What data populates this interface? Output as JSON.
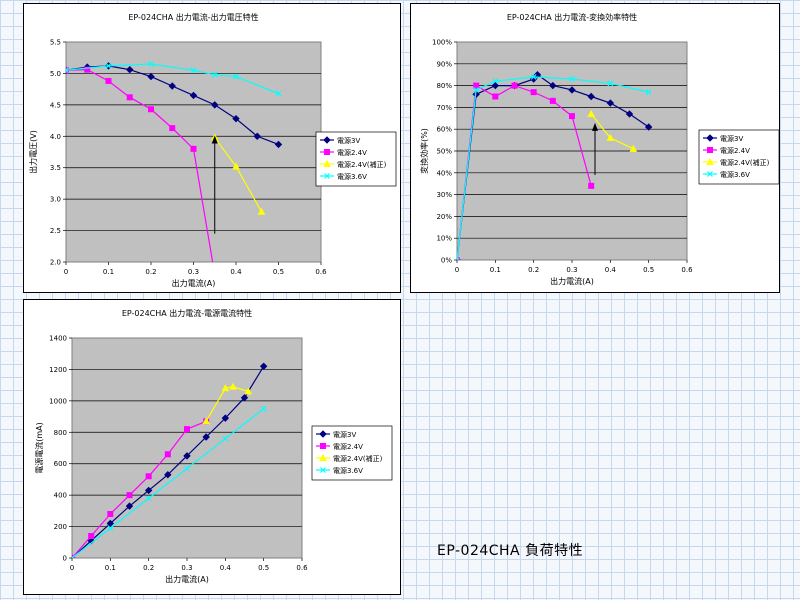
{
  "page": {
    "caption": "EP-024CHA 負荷特性",
    "background_color": "#f4f8fd",
    "grid_color": "#c6d8ef"
  },
  "chart_data": [
    {
      "type": "line",
      "title": "EP-024CHA 出力電流-出力電圧特性",
      "xlabel": "出力電流(A)",
      "ylabel": "出力電圧(V)",
      "xlim": [
        0,
        0.6
      ],
      "ylim": [
        2.0,
        5.5
      ],
      "x_ticks": [
        "0",
        "0.1",
        "0.2",
        "0.3",
        "0.4",
        "0.5",
        "0.6"
      ],
      "y_ticks": [
        "2.0",
        "2.5",
        "3.0",
        "3.5",
        "4.0",
        "4.5",
        "5.0",
        "5.5"
      ],
      "plot_bg": "#c0c0c0",
      "grid": "horizontal",
      "legend_position": "right",
      "series": [
        {
          "name": "電源3V",
          "color": "#000080",
          "marker": "diamond",
          "x": [
            0,
            0.05,
            0.1,
            0.15,
            0.2,
            0.25,
            0.3,
            0.35,
            0.4,
            0.45,
            0.5
          ],
          "y": [
            5.05,
            5.1,
            5.12,
            5.06,
            4.95,
            4.8,
            4.65,
            4.5,
            4.28,
            4.0,
            3.87
          ]
        },
        {
          "name": "電源2.4V",
          "color": "#ff00ff",
          "marker": "square",
          "x": [
            0,
            0.05,
            0.1,
            0.15,
            0.2,
            0.25,
            0.3,
            0.35
          ],
          "y": [
            5.05,
            5.06,
            4.88,
            4.62,
            4.43,
            4.13,
            3.8,
            1.8
          ]
        },
        {
          "name": "電源2.4V(補正)",
          "color": "#ffff00",
          "marker": "triangle",
          "x": [
            0.35,
            0.4,
            0.46
          ],
          "y": [
            3.98,
            3.52,
            2.8
          ]
        },
        {
          "name": "電源3.6V",
          "color": "#00ffff",
          "marker": "x",
          "x": [
            0,
            0.1,
            0.2,
            0.3,
            0.35,
            0.4,
            0.5
          ],
          "y": [
            5.05,
            5.12,
            5.15,
            5.05,
            4.98,
            4.95,
            4.68
          ]
        }
      ],
      "annotations": [
        {
          "type": "arrow",
          "x": 0.35,
          "y_from": 2.45,
          "y_to": 3.98
        }
      ]
    },
    {
      "type": "line",
      "title": "EP-024CHA 出力電流-変換効率特性",
      "xlabel": "出力電流(A)",
      "ylabel": "変換効率(%)",
      "xlim": [
        0,
        0.6
      ],
      "ylim": [
        0,
        100
      ],
      "x_ticks": [
        "0",
        "0.1",
        "0.2",
        "0.3",
        "0.4",
        "0.5",
        "0.6"
      ],
      "y_ticks": [
        "0%",
        "10%",
        "20%",
        "30%",
        "40%",
        "50%",
        "60%",
        "70%",
        "80%",
        "90%",
        "100%"
      ],
      "plot_bg": "#c0c0c0",
      "grid": "horizontal",
      "legend_position": "right",
      "series": [
        {
          "name": "電源3V",
          "color": "#000080",
          "marker": "diamond",
          "x": [
            0,
            0.05,
            0.1,
            0.15,
            0.2,
            0.21,
            0.25,
            0.3,
            0.35,
            0.4,
            0.45,
            0.5
          ],
          "y": [
            0,
            76,
            80,
            80,
            83,
            85,
            80,
            78,
            75,
            72,
            67,
            61
          ]
        },
        {
          "name": "電源2.4V",
          "color": "#ff00ff",
          "marker": "square",
          "x": [
            0,
            0.05,
            0.1,
            0.15,
            0.2,
            0.25,
            0.3,
            0.35
          ],
          "y": [
            0,
            80,
            75,
            80,
            77,
            73,
            66,
            34
          ]
        },
        {
          "name": "電源2.4V(補正)",
          "color": "#ffff00",
          "marker": "triangle",
          "x": [
            0.35,
            0.4,
            0.46
          ],
          "y": [
            67,
            56,
            51
          ]
        },
        {
          "name": "電源3.6V",
          "color": "#00ffff",
          "marker": "x",
          "x": [
            0,
            0.05,
            0.1,
            0.2,
            0.3,
            0.4,
            0.5
          ],
          "y": [
            0,
            78,
            82,
            84,
            83,
            81,
            77
          ]
        }
      ],
      "annotations": [
        {
          "type": "arrow",
          "x": 0.36,
          "y_from": 39,
          "y_to": 62
        }
      ]
    },
    {
      "type": "line",
      "title": "EP-024CHA 出力電流-電源電流特性",
      "xlabel": "出力電流(A)",
      "ylabel": "電源電流(mA)",
      "xlim": [
        0,
        0.6
      ],
      "ylim": [
        0,
        1400
      ],
      "x_ticks": [
        "0",
        "0.1",
        "0.2",
        "0.3",
        "0.4",
        "0.5",
        "0.6"
      ],
      "y_ticks": [
        "0",
        "200",
        "400",
        "600",
        "800",
        "1000",
        "1200",
        "1400"
      ],
      "plot_bg": "#c0c0c0",
      "grid": "horizontal",
      "legend_position": "right",
      "series": [
        {
          "name": "電源3V",
          "color": "#000080",
          "marker": "diamond",
          "x": [
            0,
            0.05,
            0.1,
            0.15,
            0.2,
            0.25,
            0.3,
            0.35,
            0.4,
            0.45,
            0.5
          ],
          "y": [
            0,
            110,
            220,
            330,
            430,
            530,
            650,
            770,
            890,
            1020,
            1220
          ]
        },
        {
          "name": "電源2.4V",
          "color": "#ff00ff",
          "marker": "square",
          "x": [
            0,
            0.05,
            0.1,
            0.15,
            0.2,
            0.25,
            0.3,
            0.35
          ],
          "y": [
            0,
            140,
            280,
            400,
            520,
            660,
            820,
            870
          ]
        },
        {
          "name": "電源2.4V(補正)",
          "color": "#ffff00",
          "marker": "triangle",
          "x": [
            0.35,
            0.4,
            0.42,
            0.46
          ],
          "y": [
            870,
            1080,
            1090,
            1060
          ]
        },
        {
          "name": "電源3.6V",
          "color": "#00ffff",
          "marker": "x",
          "x": [
            0,
            0.1,
            0.2,
            0.3,
            0.4,
            0.5
          ],
          "y": [
            0,
            190,
            380,
            570,
            760,
            950
          ]
        }
      ],
      "annotations": []
    }
  ]
}
